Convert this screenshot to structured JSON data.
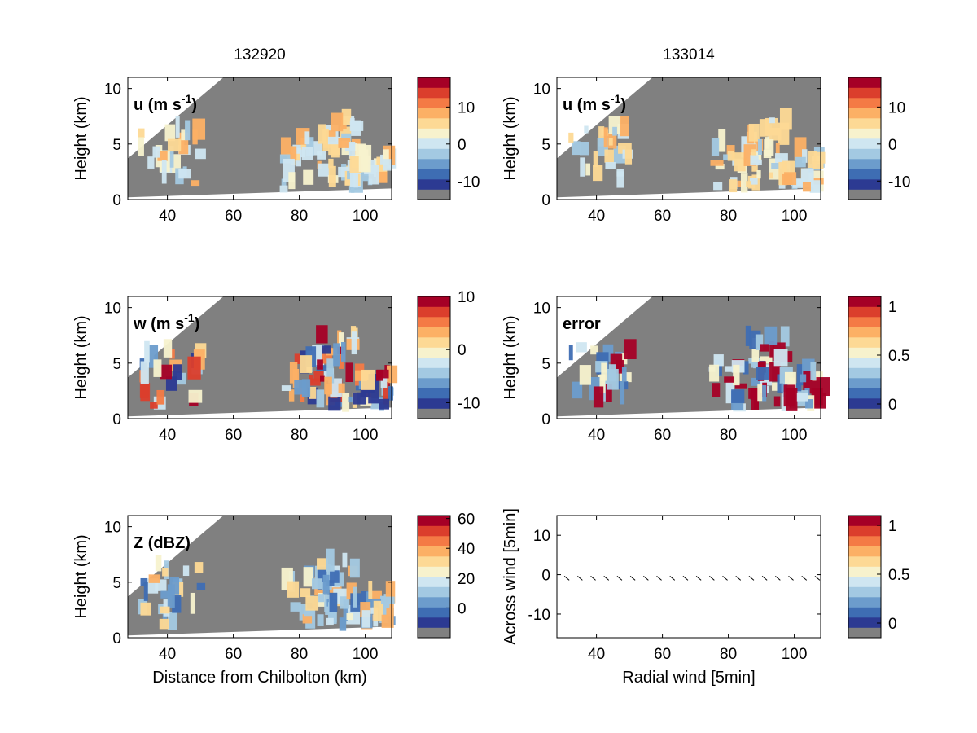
{
  "column_titles": [
    "132920",
    "133014"
  ],
  "colors": {
    "background_gray": "#808080",
    "colormap": [
      "#2c3a92",
      "#3e6db3",
      "#6c9ccc",
      "#a3c9e2",
      "#cfe6f1",
      "#f7f2cd",
      "#fdd995",
      "#fcb065",
      "#f47a45",
      "#db3e2c",
      "#a50026"
    ],
    "error_fill": "#a50026",
    "frame": "#000000"
  },
  "chart_data": [
    {
      "type": "heatmap",
      "panel_label": "u (m s",
      "panel_label_sup": "-1",
      "panel_label_close": ")",
      "title": "132920",
      "ylabel": "Height (km)",
      "xlabel": "",
      "xlim": [
        28,
        108
      ],
      "ylim": [
        0,
        11
      ],
      "xticks": [
        "40",
        "60",
        "80",
        "100"
      ],
      "yticks": [
        "0",
        "5",
        "10"
      ],
      "colorbar": {
        "ticks": [
          "10",
          "0",
          "-10"
        ],
        "range": [
          -15,
          18
        ]
      }
    },
    {
      "type": "heatmap",
      "panel_label": "u (m s",
      "panel_label_sup": "-1",
      "panel_label_close": ")",
      "title": "133014",
      "ylabel": "Height (km)",
      "xlabel": "",
      "xlim": [
        28,
        108
      ],
      "ylim": [
        0,
        11
      ],
      "xticks": [
        "40",
        "60",
        "80",
        "100"
      ],
      "yticks": [
        "0",
        "5",
        "10"
      ],
      "colorbar": {
        "ticks": [
          "10",
          "0",
          "-10"
        ],
        "range": [
          -15,
          18
        ]
      }
    },
    {
      "type": "heatmap",
      "panel_label": "w (m s",
      "panel_label_sup": "-1",
      "panel_label_close": ")",
      "title": "",
      "ylabel": "Height (km)",
      "xlabel": "",
      "xlim": [
        28,
        108
      ],
      "ylim": [
        0,
        11
      ],
      "xticks": [
        "40",
        "60",
        "80",
        "100"
      ],
      "yticks": [
        "0",
        "5",
        "10"
      ],
      "colorbar": {
        "ticks": [
          "10",
          "0",
          "-10"
        ],
        "range": [
          -13,
          10
        ]
      }
    },
    {
      "type": "heatmap",
      "panel_label": "error",
      "panel_label_sup": "",
      "panel_label_close": "",
      "title": "",
      "ylabel": "Height (km)",
      "xlabel": "",
      "xlim": [
        28,
        108
      ],
      "ylim": [
        0,
        11
      ],
      "xticks": [
        "40",
        "60",
        "80",
        "100"
      ],
      "yticks": [
        "0",
        "5",
        "10"
      ],
      "colorbar": {
        "ticks": [
          "1",
          "0.5",
          "0"
        ],
        "range": [
          -0.15,
          1.1
        ]
      }
    },
    {
      "type": "heatmap",
      "panel_label": "Z (dBZ)",
      "panel_label_sup": "",
      "panel_label_close": "",
      "title": "",
      "ylabel": "Height (km)",
      "xlabel": "Distance from Chilbolton (km)",
      "xlim": [
        28,
        108
      ],
      "ylim": [
        0,
        11
      ],
      "xticks": [
        "40",
        "60",
        "80",
        "100"
      ],
      "yticks": [
        "0",
        "5",
        "10"
      ],
      "colorbar": {
        "ticks": [
          "60",
          "40",
          "20",
          "0"
        ],
        "range": [
          -20,
          62
        ]
      }
    },
    {
      "type": "scatter",
      "panel_label": "",
      "panel_label_sup": "",
      "panel_label_close": "",
      "title": "",
      "ylabel": "Across wind [5min]",
      "xlabel": "Radial wind [5min]",
      "xlim": [
        28,
        108
      ],
      "ylim": [
        -16,
        15
      ],
      "xticks": [
        "40",
        "60",
        "80",
        "100"
      ],
      "yticks": [
        "10",
        "0",
        "-10"
      ],
      "colorbar": {
        "ticks": [
          "1",
          "0.5",
          "0"
        ],
        "range": [
          -0.15,
          1.1
        ]
      },
      "vectors": {
        "x": [
          31,
          35,
          39,
          43,
          47,
          51,
          55,
          59,
          63,
          67,
          71,
          75,
          79,
          83,
          87,
          91,
          95,
          99,
          103,
          107
        ],
        "y": [
          -1,
          -1,
          -1,
          -1,
          -1,
          -1,
          -1,
          -1,
          -1,
          -1,
          -1,
          -1,
          -1,
          -1,
          -1,
          -1,
          -1,
          -1,
          -1,
          -1
        ]
      }
    }
  ]
}
